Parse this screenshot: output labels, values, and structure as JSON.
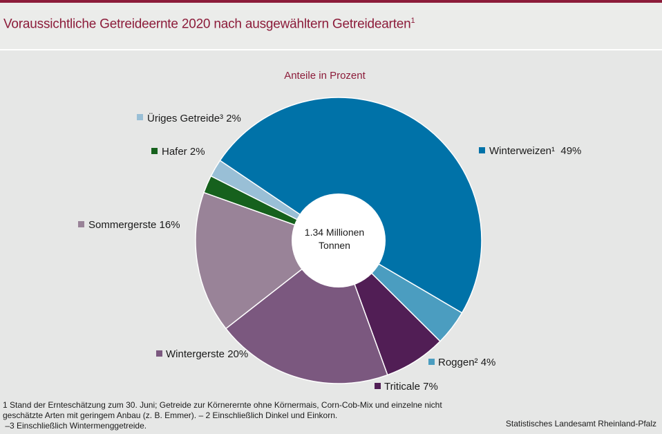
{
  "header": {
    "title": "Voraussichtliche Getreideernte 2020 nach ausgewähltern Getreidearten",
    "title_sup": "1"
  },
  "chart_data": {
    "type": "pie",
    "subtitle": "Anteile in Prozent",
    "center_label": [
      "1.34 Millionen",
      "Tonnen"
    ],
    "series": [
      {
        "name": "Winterweizen¹",
        "value": 49,
        "color": "#0072a8"
      },
      {
        "name": "Roggen²",
        "value": 4,
        "color": "#4b9dc0"
      },
      {
        "name": "Triticale",
        "value": 7,
        "color": "#511e55"
      },
      {
        "name": "Wintergerste",
        "value": 20,
        "color": "#7b587f"
      },
      {
        "name": "Sommergerste",
        "value": 16,
        "color": "#998398"
      },
      {
        "name": "Hafer",
        "value": 2,
        "color": "#16611d"
      },
      {
        "name": "Üriges Getreide³",
        "value": 2,
        "color": "#99bfd6"
      }
    ],
    "labels": [
      "Winterweizen¹  49%",
      "Roggen² 4%",
      "Triticale 7%",
      "Wintergerste 20%",
      "Sommergerste 16%",
      "Hafer 2%",
      "Üriges Getreide³ 2%"
    ]
  },
  "footnotes": [
    "1 Stand der Ernteschätzung zum 30. Juni; Getreide zur Körnerernte ohne Körnermais, Corn-Cob-Mix und einzelne nicht",
    "geschätzte Arten mit geringem Anbau (z. B. Emmer). – 2 Einschließlich Dinkel und Einkorn.",
    " –3 Einschließlich Wintermenggetreide."
  ],
  "source": "Statistisches Landesamt Rheinland-Pfalz"
}
